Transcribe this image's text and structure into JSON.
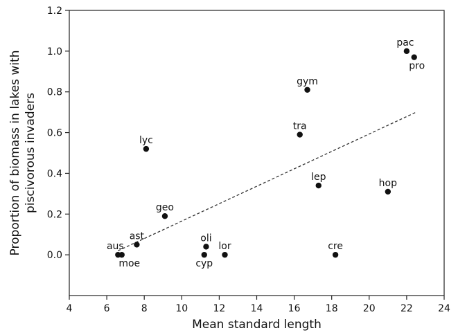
{
  "chart_data": {
    "type": "scatter",
    "title": "",
    "xlabel": "Mean standard length",
    "ylabel_lines": [
      "Proportion of biomass in lakes with",
      "piscivorous invaders"
    ],
    "xlim": [
      4,
      24
    ],
    "ylim": [
      -0.2,
      1.2
    ],
    "x_ticks": [
      4,
      6,
      8,
      10,
      12,
      14,
      16,
      18,
      20,
      22,
      24
    ],
    "x_tick_labels": [
      "4",
      "6",
      "8",
      "10",
      "12",
      "14",
      "16",
      "18",
      "20",
      "22",
      "24"
    ],
    "y_ticks": [
      0.0,
      0.2,
      0.4,
      0.6,
      0.8,
      1.0,
      1.2
    ],
    "y_tick_labels": [
      "0.0",
      "0.2",
      "0.4",
      "0.6",
      "0.8",
      "1.0",
      "1.2"
    ],
    "grid": false,
    "points": [
      {
        "label": "pac",
        "x": 22.0,
        "y": 1.0,
        "label_pos": "above"
      },
      {
        "label": "pro",
        "x": 22.4,
        "y": 0.97,
        "label_pos": "below"
      },
      {
        "label": "gym",
        "x": 16.7,
        "y": 0.81,
        "label_pos": "above"
      },
      {
        "label": "tra",
        "x": 16.3,
        "y": 0.59,
        "label_pos": "above"
      },
      {
        "label": "lyc",
        "x": 8.1,
        "y": 0.52,
        "label_pos": "above"
      },
      {
        "label": "lep",
        "x": 17.3,
        "y": 0.34,
        "label_pos": "above"
      },
      {
        "label": "hop",
        "x": 21.0,
        "y": 0.31,
        "label_pos": "above"
      },
      {
        "label": "geo",
        "x": 9.1,
        "y": 0.19,
        "label_pos": "above"
      },
      {
        "label": "ast",
        "x": 7.6,
        "y": 0.05,
        "label_pos": "above"
      },
      {
        "label": "oli",
        "x": 11.3,
        "y": 0.04,
        "label_pos": "above"
      },
      {
        "label": "aus",
        "x": 6.6,
        "y": 0.0,
        "label_pos": "above"
      },
      {
        "label": "moe",
        "x": 6.8,
        "y": 0.0,
        "label_pos": "below"
      },
      {
        "label": "cyp",
        "x": 11.2,
        "y": 0.0,
        "label_pos": "below"
      },
      {
        "label": "lor",
        "x": 12.3,
        "y": 0.0,
        "label_pos": "above"
      },
      {
        "label": "cre",
        "x": 18.2,
        "y": 0.0,
        "label_pos": "above"
      }
    ],
    "trendline": {
      "style": "dashed",
      "x": [
        6.6,
        22.5
      ],
      "y": 0.0,
      "y_end": 0.7,
      "y_points": [
        0.02,
        0.7
      ]
    }
  }
}
